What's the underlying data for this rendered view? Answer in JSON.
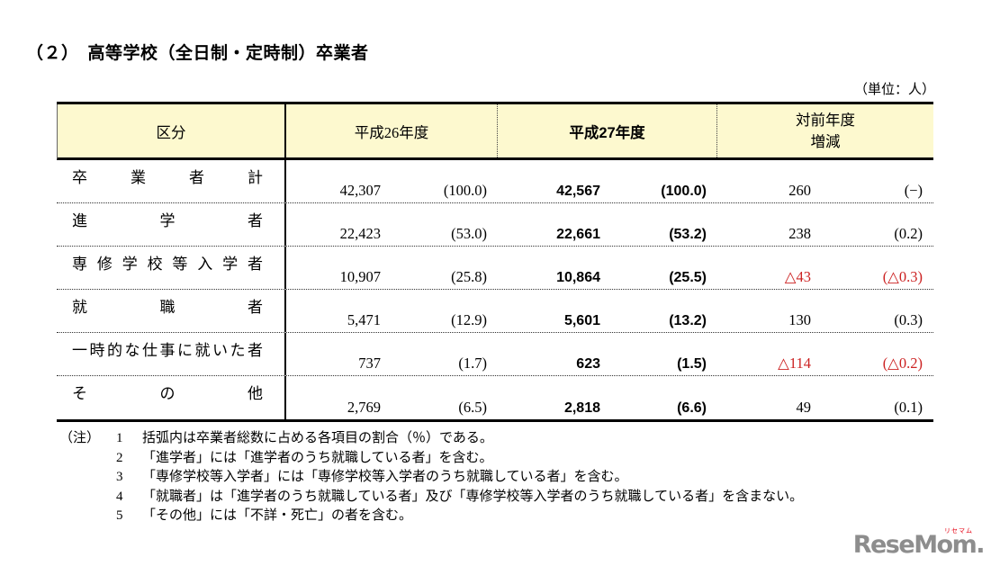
{
  "page": {
    "title": "（２）　高等学校（全日制・定時制）卒業者",
    "unit_label": "（単位：人）"
  },
  "colors": {
    "header_bg": "#fdf9cf",
    "negative_red": "#cc2222",
    "logo_gray": "#8d8d8d",
    "logo_red": "#e60012"
  },
  "table": {
    "headers": {
      "category": "区分",
      "y2014": "平成26年度",
      "y2015": "平成27年度",
      "diff_line1": "対前年度",
      "diff_line2": "増減"
    },
    "rows": [
      {
        "label": "卒業者計",
        "h26": "42,307",
        "h26_pct": "(100.0)",
        "h27": "42,567",
        "h27_pct": "(100.0)",
        "diff": "260",
        "diff_pct": "(−)"
      },
      {
        "label": "進学者",
        "h26": "22,423",
        "h26_pct": "(53.0)",
        "h27": "22,661",
        "h27_pct": "(53.2)",
        "diff": "238",
        "diff_pct": "(0.2)"
      },
      {
        "label": "専修学校等入学者",
        "h26": "10,907",
        "h26_pct": "(25.8)",
        "h27": "10,864",
        "h27_pct": "(25.5)",
        "diff": "△43",
        "diff_pct": "(△0.3)"
      },
      {
        "label": "就職者",
        "h26": "5,471",
        "h26_pct": "(12.9)",
        "h27": "5,601",
        "h27_pct": "(13.2)",
        "diff": "130",
        "diff_pct": "(0.3)"
      },
      {
        "label": "一時的な仕事に就いた者",
        "h26": "737",
        "h26_pct": "(1.7)",
        "h27": "623",
        "h27_pct": "(1.5)",
        "diff": "△114",
        "diff_pct": "(△0.2)"
      },
      {
        "label": "その他",
        "h26": "2,769",
        "h26_pct": "(6.5)",
        "h27": "2,818",
        "h27_pct": "(6.6)",
        "diff": "49",
        "diff_pct": "(0.1)"
      }
    ]
  },
  "notes": {
    "mark": "（注）",
    "items": [
      {
        "num": "1",
        "text": "括弧内は卒業者総数に占める各項目の割合（％）である。"
      },
      {
        "num": "2",
        "text": "「進学者」には「進学者のうち就職している者」を含む。"
      },
      {
        "num": "3",
        "text": "「専修学校等入学者」には「専修学校等入学者のうち就職している者」を含む。"
      },
      {
        "num": "4",
        "text": "「就職者」は「進学者のうち就職している者」及び「専修学校等入学者のうち就職している者」を含まない。"
      },
      {
        "num": "5",
        "text": "「その他」には「不詳・死亡」の者を含む。"
      }
    ]
  },
  "logo": {
    "text": "ReseMom.",
    "ruby": "リセマム"
  }
}
